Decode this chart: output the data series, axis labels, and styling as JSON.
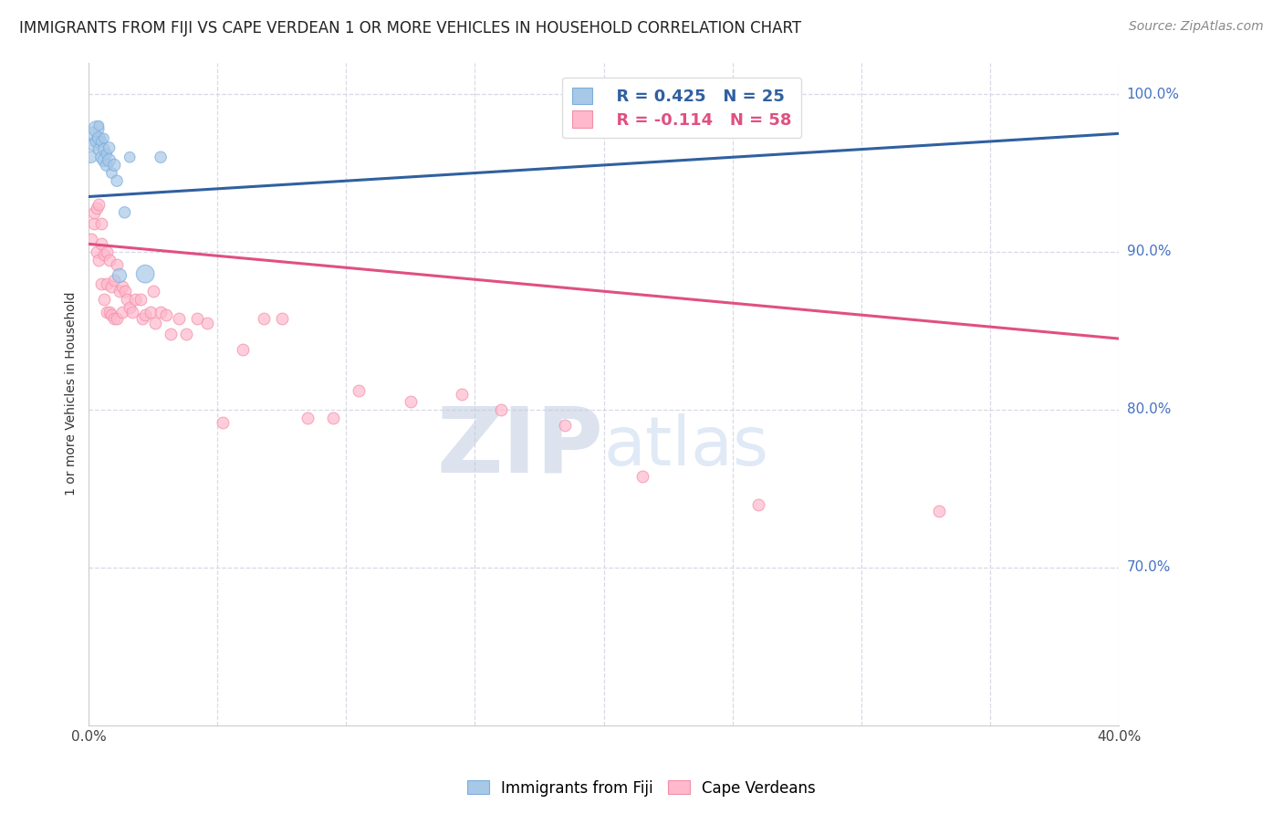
{
  "title": "IMMIGRANTS FROM FIJI VS CAPE VERDEAN 1 OR MORE VEHICLES IN HOUSEHOLD CORRELATION CHART",
  "source": "Source: ZipAtlas.com",
  "ylabel": "1 or more Vehicles in Household",
  "fiji_R": 0.425,
  "fiji_N": 25,
  "cape_verdean_R": -0.114,
  "cape_verdean_N": 58,
  "fiji_color": "#a8c8e8",
  "fiji_edge_color": "#7aaedc",
  "cape_verdean_color": "#ffb8cc",
  "cape_verdean_edge_color": "#f090a8",
  "fiji_line_color": "#3060a0",
  "cape_verdean_line_color": "#e05080",
  "background_color": "#ffffff",
  "grid_color": "#d8d8e8",
  "xlim": [
    0.0,
    0.4
  ],
  "ylim": [
    0.6,
    1.02
  ],
  "ytick_positions": [
    1.0,
    0.9,
    0.8,
    0.7
  ],
  "ytick_labels": [
    "100.0%",
    "90.0%",
    "80.0%",
    "70.0%"
  ],
  "fiji_line_x0": 0.0,
  "fiji_line_x1": 0.4,
  "fiji_line_y0": 0.935,
  "fiji_line_y1": 0.975,
  "cape_line_y0": 0.905,
  "cape_line_y1": 0.845,
  "fiji_scatter_x": [
    0.001,
    0.002,
    0.002,
    0.003,
    0.003,
    0.004,
    0.004,
    0.004,
    0.005,
    0.005,
    0.006,
    0.006,
    0.006,
    0.007,
    0.007,
    0.008,
    0.008,
    0.009,
    0.01,
    0.011,
    0.012,
    0.014,
    0.016,
    0.022,
    0.028
  ],
  "fiji_scatter_y": [
    0.96,
    0.968,
    0.975,
    0.97,
    0.978,
    0.965,
    0.972,
    0.98,
    0.96,
    0.97,
    0.958,
    0.965,
    0.972,
    0.955,
    0.962,
    0.958,
    0.966,
    0.95,
    0.955,
    0.945,
    0.885,
    0.925,
    0.96,
    0.886,
    0.96
  ],
  "fiji_scatter_size": [
    80,
    100,
    120,
    90,
    150,
    80,
    100,
    60,
    90,
    70,
    100,
    80,
    60,
    90,
    70,
    100,
    80,
    70,
    90,
    80,
    120,
    80,
    70,
    200,
    80
  ],
  "cape_verdean_scatter_x": [
    0.001,
    0.002,
    0.002,
    0.003,
    0.003,
    0.004,
    0.004,
    0.005,
    0.005,
    0.005,
    0.006,
    0.006,
    0.007,
    0.007,
    0.007,
    0.008,
    0.008,
    0.009,
    0.009,
    0.01,
    0.01,
    0.011,
    0.011,
    0.012,
    0.013,
    0.013,
    0.014,
    0.015,
    0.016,
    0.017,
    0.018,
    0.02,
    0.021,
    0.022,
    0.024,
    0.025,
    0.026,
    0.028,
    0.03,
    0.032,
    0.035,
    0.038,
    0.042,
    0.046,
    0.052,
    0.06,
    0.068,
    0.075,
    0.085,
    0.095,
    0.105,
    0.125,
    0.145,
    0.16,
    0.185,
    0.215,
    0.26,
    0.33
  ],
  "cape_verdean_scatter_y": [
    0.908,
    0.918,
    0.925,
    0.9,
    0.928,
    0.93,
    0.895,
    0.918,
    0.905,
    0.88,
    0.898,
    0.87,
    0.9,
    0.88,
    0.862,
    0.895,
    0.862,
    0.878,
    0.86,
    0.882,
    0.858,
    0.892,
    0.858,
    0.875,
    0.878,
    0.862,
    0.875,
    0.87,
    0.865,
    0.862,
    0.87,
    0.87,
    0.858,
    0.86,
    0.862,
    0.875,
    0.855,
    0.862,
    0.86,
    0.848,
    0.858,
    0.848,
    0.858,
    0.855,
    0.792,
    0.838,
    0.858,
    0.858,
    0.795,
    0.795,
    0.812,
    0.805,
    0.81,
    0.8,
    0.79,
    0.758,
    0.74,
    0.736
  ],
  "cape_verdean_scatter_size": [
    80,
    80,
    80,
    80,
    80,
    80,
    80,
    80,
    80,
    80,
    80,
    80,
    80,
    80,
    80,
    80,
    80,
    80,
    80,
    80,
    80,
    80,
    80,
    80,
    80,
    80,
    80,
    80,
    80,
    80,
    80,
    80,
    80,
    80,
    80,
    80,
    80,
    80,
    80,
    80,
    80,
    80,
    80,
    80,
    80,
    80,
    80,
    80,
    80,
    80,
    80,
    80,
    80,
    80,
    80,
    80,
    80,
    80
  ],
  "marker_size": 85,
  "title_fontsize": 12,
  "source_fontsize": 10,
  "axis_label_fontsize": 10,
  "tick_fontsize": 11,
  "legend_fontsize": 13,
  "watermark_color_zip": "#c0cce0",
  "watermark_color_atlas": "#c8d8f0",
  "watermark_fontsize": 72
}
